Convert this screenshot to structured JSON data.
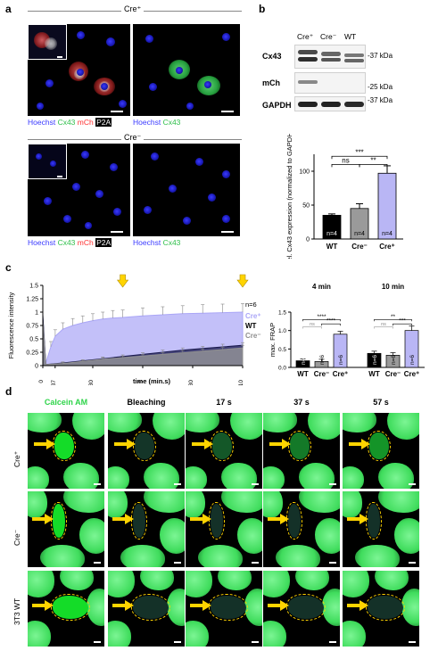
{
  "panel_labels": {
    "a": "a",
    "b": "b",
    "c": "c",
    "d": "d"
  },
  "panel_a": {
    "top_header": "Cre⁺",
    "bottom_header": "Cre⁻",
    "captions": {
      "merge_hoechst": "Hoechst",
      "merge_cx43": "Cx43",
      "merge_mch": "mCh",
      "merge_p2a": "P2A",
      "green_hoechst": "Hoechst",
      "green_cx43": "Cx43"
    }
  },
  "panel_b": {
    "lanes": [
      "Cre⁺",
      "Cre⁻",
      "WT"
    ],
    "rows": [
      {
        "label": "Cx43",
        "marker": "37 kDa"
      },
      {
        "label": "mCh",
        "marker": "25 kDa"
      },
      {
        "label": "GAPDH",
        "marker": "37 kDa"
      }
    ]
  },
  "chart_data": [
    {
      "type": "bar",
      "panel": "b",
      "ylabel": "rel. Cx43 expression (normalized to GAPDH)",
      "categories": [
        "WT",
        "Cre⁻",
        "Cre⁺"
      ],
      "values": [
        35,
        45,
        97
      ],
      "errors": [
        2,
        7,
        11
      ],
      "ylim": [
        0,
        125
      ],
      "yticks": [
        0,
        50,
        100
      ],
      "bar_labels": [
        "n=4",
        "n=4",
        "n=4"
      ],
      "colors": [
        "#000000",
        "#9a9a9a",
        "#b9b6f5"
      ],
      "significance": [
        {
          "pair": [
            "Cre⁻",
            "Cre⁺"
          ],
          "label": "**"
        },
        {
          "pair": [
            "WT",
            "Cre⁻"
          ],
          "label": "ns"
        },
        {
          "pair": [
            "WT",
            "Cre⁺"
          ],
          "label": "***"
        }
      ]
    },
    {
      "type": "area",
      "panel": "c",
      "ylabel": "Fluorescence intensity",
      "xlabel": "time (min.s)",
      "xticks": [
        "0",
        "0.37",
        "2.30",
        "5",
        "7.30",
        "10"
      ],
      "xtick_values": [
        0,
        0.6167,
        2.5,
        5,
        7.5,
        10
      ],
      "xlim": [
        0,
        10
      ],
      "ylim": [
        0,
        1.5
      ],
      "yticks": [
        0,
        0.25,
        0.5,
        0.75,
        1.0,
        1.25,
        1.5
      ],
      "ytick_labels": [
        "0",
        "0.25",
        "0.5",
        "0.75",
        "1",
        "1.25",
        "1.5"
      ],
      "arrow_times": [
        4,
        10
      ],
      "n_label": "n=6",
      "series": [
        {
          "name": "Cre⁺",
          "color": "#aaa6f7",
          "x": [
            0,
            0.15,
            0.4,
            0.62,
            1,
            1.5,
            2,
            2.5,
            3,
            3.5,
            4,
            5,
            6,
            7,
            8,
            9,
            10
          ],
          "y": [
            0.9,
            0.05,
            0.35,
            0.55,
            0.68,
            0.75,
            0.8,
            0.84,
            0.87,
            0.89,
            0.9,
            0.93,
            0.95,
            0.97,
            0.98,
            0.99,
            1.0
          ],
          "err": [
            0,
            0,
            0.1,
            0.12,
            0.12,
            0.13,
            0.13,
            0.13,
            0.13,
            0.14,
            0.14,
            0.15,
            0.15,
            0.15,
            0.16,
            0.16,
            0.16
          ]
        },
        {
          "name": "WT",
          "color": "#1a1a4d",
          "x": [
            0,
            0.15,
            1,
            2,
            3,
            4,
            5,
            6,
            7,
            8,
            9,
            10
          ],
          "y": [
            0.95,
            0.02,
            0.05,
            0.09,
            0.13,
            0.17,
            0.21,
            0.25,
            0.29,
            0.32,
            0.35,
            0.38
          ],
          "err": [
            0,
            0,
            0.02,
            0.02,
            0.03,
            0.03,
            0.03,
            0.04,
            0.04,
            0.04,
            0.05,
            0.05
          ]
        },
        {
          "name": "Cre⁻",
          "color": "#8f8f8f",
          "x": [
            0,
            0.15,
            1,
            2,
            3,
            4,
            5,
            6,
            7,
            8,
            9,
            10
          ],
          "y": [
            0.85,
            0.02,
            0.04,
            0.08,
            0.12,
            0.15,
            0.18,
            0.21,
            0.24,
            0.27,
            0.3,
            0.33
          ],
          "err": [
            0,
            0,
            0.02,
            0.02,
            0.03,
            0.03,
            0.03,
            0.03,
            0.04,
            0.04,
            0.04,
            0.05
          ]
        }
      ]
    },
    {
      "type": "bar",
      "panel": "c-right",
      "ylabel": "max. FRAP",
      "groups": [
        "4 min",
        "10 min"
      ],
      "categories": [
        "WT",
        "Cre⁻",
        "Cre⁺"
      ],
      "colors": [
        "#000000",
        "#9a9a9a",
        "#b9b6f5"
      ],
      "ylim": [
        0,
        1.5
      ],
      "yticks": [
        0,
        0.5,
        1.0,
        1.5
      ],
      "ytick_labels": [
        "0.0",
        "0.5",
        "1.0",
        "1.5"
      ],
      "series": [
        {
          "name": "4 min",
          "values": [
            0.18,
            0.16,
            0.9
          ],
          "errors": [
            0.05,
            0.06,
            0.08
          ]
        },
        {
          "name": "10 min",
          "values": [
            0.38,
            0.33,
            1.0
          ],
          "errors": [
            0.06,
            0.07,
            0.12
          ]
        }
      ],
      "bar_labels": [
        "n=6",
        "n=6",
        "n=6"
      ],
      "significance": [
        {
          "group": "4 min",
          "pair": [
            "WT",
            "Cre⁻"
          ],
          "label": "ns"
        },
        {
          "group": "4 min",
          "pair": [
            "Cre⁻",
            "Cre⁺"
          ],
          "label": "****"
        },
        {
          "group": "4 min",
          "pair": [
            "WT",
            "Cre⁺"
          ],
          "label": "****"
        },
        {
          "group": "10 min",
          "pair": [
            "WT",
            "Cre⁻"
          ],
          "label": "ns"
        },
        {
          "group": "10 min",
          "pair": [
            "Cre⁻",
            "Cre⁺"
          ],
          "label": "***"
        },
        {
          "group": "10 min",
          "pair": [
            "WT",
            "Cre⁺"
          ],
          "label": "**"
        }
      ]
    }
  ],
  "panel_d": {
    "columns": [
      "Calcein AM",
      "Bleaching",
      "17 s",
      "37 s",
      "57 s"
    ],
    "rows": [
      "Cre⁺",
      "Cre⁻",
      "3T3 WT"
    ]
  },
  "colors": {
    "hoechst": "#3b3bff",
    "cx43": "#2fd44a",
    "mch": "#ff3030",
    "calcein": "#5cf07a",
    "highlight": "#ffd400"
  }
}
